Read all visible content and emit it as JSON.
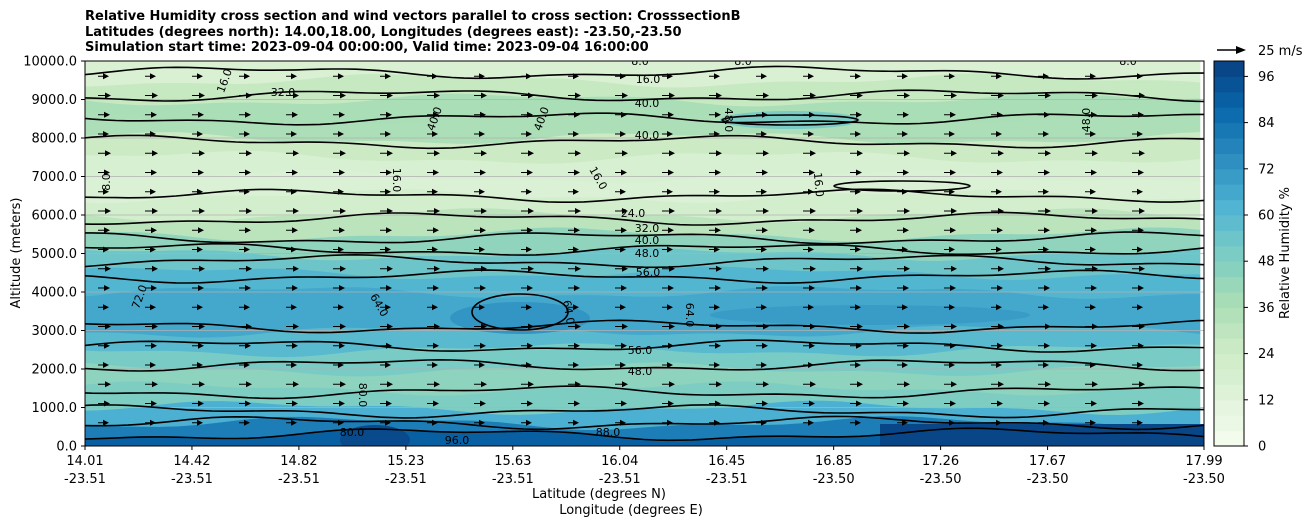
{
  "titles": [
    "Relative Humidity cross section and wind vectors parallel to cross section: CrosssectionB",
    "Latitudes (degrees north): 14.00,18.00, Longitudes (degrees east): -23.50,-23.50",
    "Simulation start time: 2023-09-04 00:00:00, Valid time: 2023-09-04 16:00:00"
  ],
  "chart_data": {
    "type": "heatmap",
    "ylabel": "Altitude (meters)",
    "xlabel_lat": "Latitude (degrees N)",
    "xlabel_lon": "Longitude (degrees E)",
    "ylim": [
      0,
      10000
    ],
    "yticks": [
      "0.0",
      "1000.0",
      "2000.0",
      "3000.0",
      "4000.0",
      "5000.0",
      "6000.0",
      "7000.0",
      "8000.0",
      "9000.0",
      "10000.0"
    ],
    "xticks": [
      {
        "lat": "14.01",
        "lon": "-23.51"
      },
      {
        "lat": "14.42",
        "lon": "-23.51"
      },
      {
        "lat": "14.82",
        "lon": "-23.51"
      },
      {
        "lat": "15.23",
        "lon": "-23.51"
      },
      {
        "lat": "15.63",
        "lon": "-23.51"
      },
      {
        "lat": "16.04",
        "lon": "-23.51"
      },
      {
        "lat": "16.45",
        "lon": "-23.51"
      },
      {
        "lat": "16.85",
        "lon": "-23.50"
      },
      {
        "lat": "17.26",
        "lon": "-23.50"
      },
      {
        "lat": "17.67",
        "lon": "-23.50"
      },
      {
        "lat": "17.99",
        "lon": "-23.50"
      }
    ],
    "colorbar": {
      "label": "Relative Humidity %",
      "ticks": [
        "0",
        "12",
        "24",
        "36",
        "48",
        "60",
        "72",
        "84",
        "96"
      ],
      "range": [
        0,
        100
      ]
    },
    "wind_key": "25 m/s",
    "contour_labels": [
      "8.0",
      "16.0",
      "24.0",
      "32.0",
      "40.0",
      "48.0",
      "56.0",
      "64.0",
      "72.0",
      "80.0",
      "88.0",
      "96.0"
    ],
    "rh_profile": [
      {
        "alt": 0,
        "rh": 92
      },
      {
        "alt": 300,
        "rh": 88
      },
      {
        "alt": 600,
        "rh": 72
      },
      {
        "alt": 1000,
        "rh": 55
      },
      {
        "alt": 1500,
        "rh": 44
      },
      {
        "alt": 2000,
        "rh": 46
      },
      {
        "alt": 2500,
        "rh": 55
      },
      {
        "alt": 3000,
        "rh": 64
      },
      {
        "alt": 3500,
        "rh": 68
      },
      {
        "alt": 4000,
        "rh": 64
      },
      {
        "alt": 4500,
        "rh": 58
      },
      {
        "alt": 5000,
        "rh": 50
      },
      {
        "alt": 5500,
        "rh": 38
      },
      {
        "alt": 6000,
        "rh": 24
      },
      {
        "alt": 6500,
        "rh": 17
      },
      {
        "alt": 7000,
        "rh": 15
      },
      {
        "alt": 7500,
        "rh": 20
      },
      {
        "alt": 8000,
        "rh": 30
      },
      {
        "alt": 8500,
        "rh": 42
      },
      {
        "alt": 9000,
        "rh": 32
      },
      {
        "alt": 9500,
        "rh": 22
      },
      {
        "alt": 10000,
        "rh": 12
      }
    ]
  }
}
